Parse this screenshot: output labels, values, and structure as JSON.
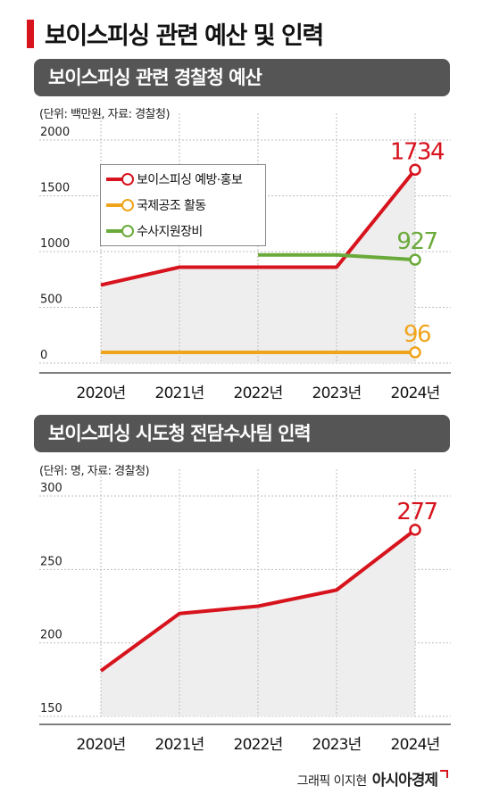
{
  "header": {
    "title": "보이스피싱 관련 예산 및 인력"
  },
  "sections": [
    {
      "heading": "보이스피싱 관련 경찰청 예산",
      "unit": "(단위: 백만원, 자료: 경찰청)"
    },
    {
      "heading": "보이스피싱 시도청 전담수사팀 인력",
      "unit": "(단위: 명, 자료: 경찰청)"
    }
  ],
  "credit": {
    "text": "그래픽 이지현",
    "brand": "아시아경제"
  },
  "colors": {
    "red": "#d7141e",
    "orange": "#f0a41c",
    "green": "#6aaa3a",
    "area": "#eeeeee"
  },
  "chart_data": [
    {
      "type": "line",
      "title": "보이스피싱 관련 경찰청 예산",
      "x": [
        "2020년",
        "2021년",
        "2022년",
        "2023년",
        "2024년"
      ],
      "yticks": [
        "0",
        "500",
        "1000",
        "1500",
        "2000"
      ],
      "ylim": [
        0,
        2000
      ],
      "legend_position": "top-left",
      "grid": false,
      "series": [
        {
          "name": "보이스피싱 예방·홍보",
          "color": "red",
          "values": [
            700,
            860,
            860,
            860,
            1734
          ],
          "end_label": "1734",
          "area": true
        },
        {
          "name": "국제공조 활동",
          "color": "orange",
          "values": [
            96,
            96,
            96,
            96,
            96
          ],
          "end_label": "96",
          "area": false
        },
        {
          "name": "수사지원장비",
          "color": "green",
          "values": [
            null,
            null,
            970,
            970,
            927
          ],
          "end_label": "927",
          "area": false
        }
      ]
    },
    {
      "type": "line",
      "title": "보이스피싱 시도청 전담수사팀 인력",
      "x": [
        "2020년",
        "2021년",
        "2022년",
        "2023년",
        "2024년"
      ],
      "yticks": [
        "150",
        "200",
        "250",
        "300"
      ],
      "ylim": [
        150,
        300
      ],
      "grid": false,
      "series": [
        {
          "color": "red",
          "values": [
            181,
            220,
            225,
            236,
            277
          ],
          "end_label": "277",
          "area": true
        }
      ]
    }
  ]
}
